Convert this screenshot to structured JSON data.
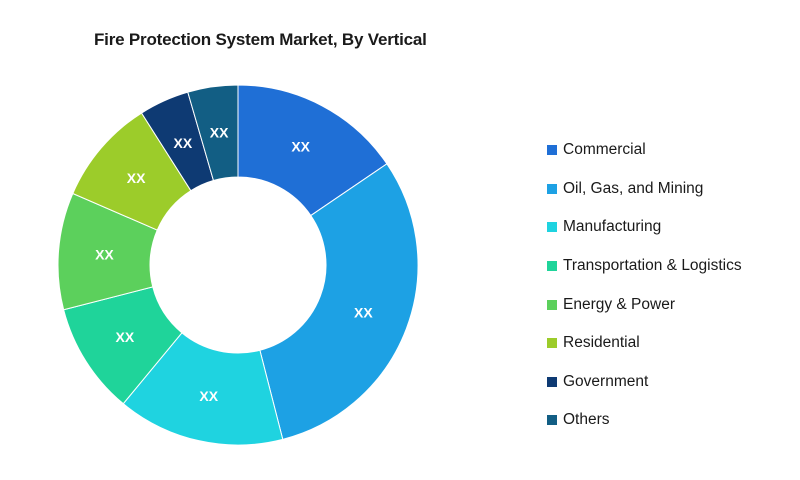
{
  "chart_data": {
    "type": "pie",
    "title": "Fire Protection System Market, By Vertical",
    "donut": true,
    "legend_position": "right",
    "slices": [
      {
        "label": "Commercial",
        "value": 15.5,
        "data_label": "XX",
        "color": "#1f6fd6"
      },
      {
        "label": "Oil, Gas, and Mining",
        "value": 30.5,
        "data_label": "XX",
        "color": "#1da1e4"
      },
      {
        "label": "Manufacturing",
        "value": 15.0,
        "data_label": "XX",
        "color": "#1fd3e0"
      },
      {
        "label": "Transportation & Logistics",
        "value": 10.0,
        "data_label": "XX",
        "color": "#1fd49a"
      },
      {
        "label": "Energy & Power",
        "value": 10.5,
        "data_label": "XX",
        "color": "#5cd05c"
      },
      {
        "label": "Residential",
        "value": 9.5,
        "data_label": "XX",
        "color": "#9ccc2a"
      },
      {
        "label": "Government",
        "value": 4.5,
        "data_label": "XX",
        "color": "#0e3a73"
      },
      {
        "label": "Others",
        "value": 4.5,
        "data_label": "XX",
        "color": "#125e84"
      }
    ]
  }
}
